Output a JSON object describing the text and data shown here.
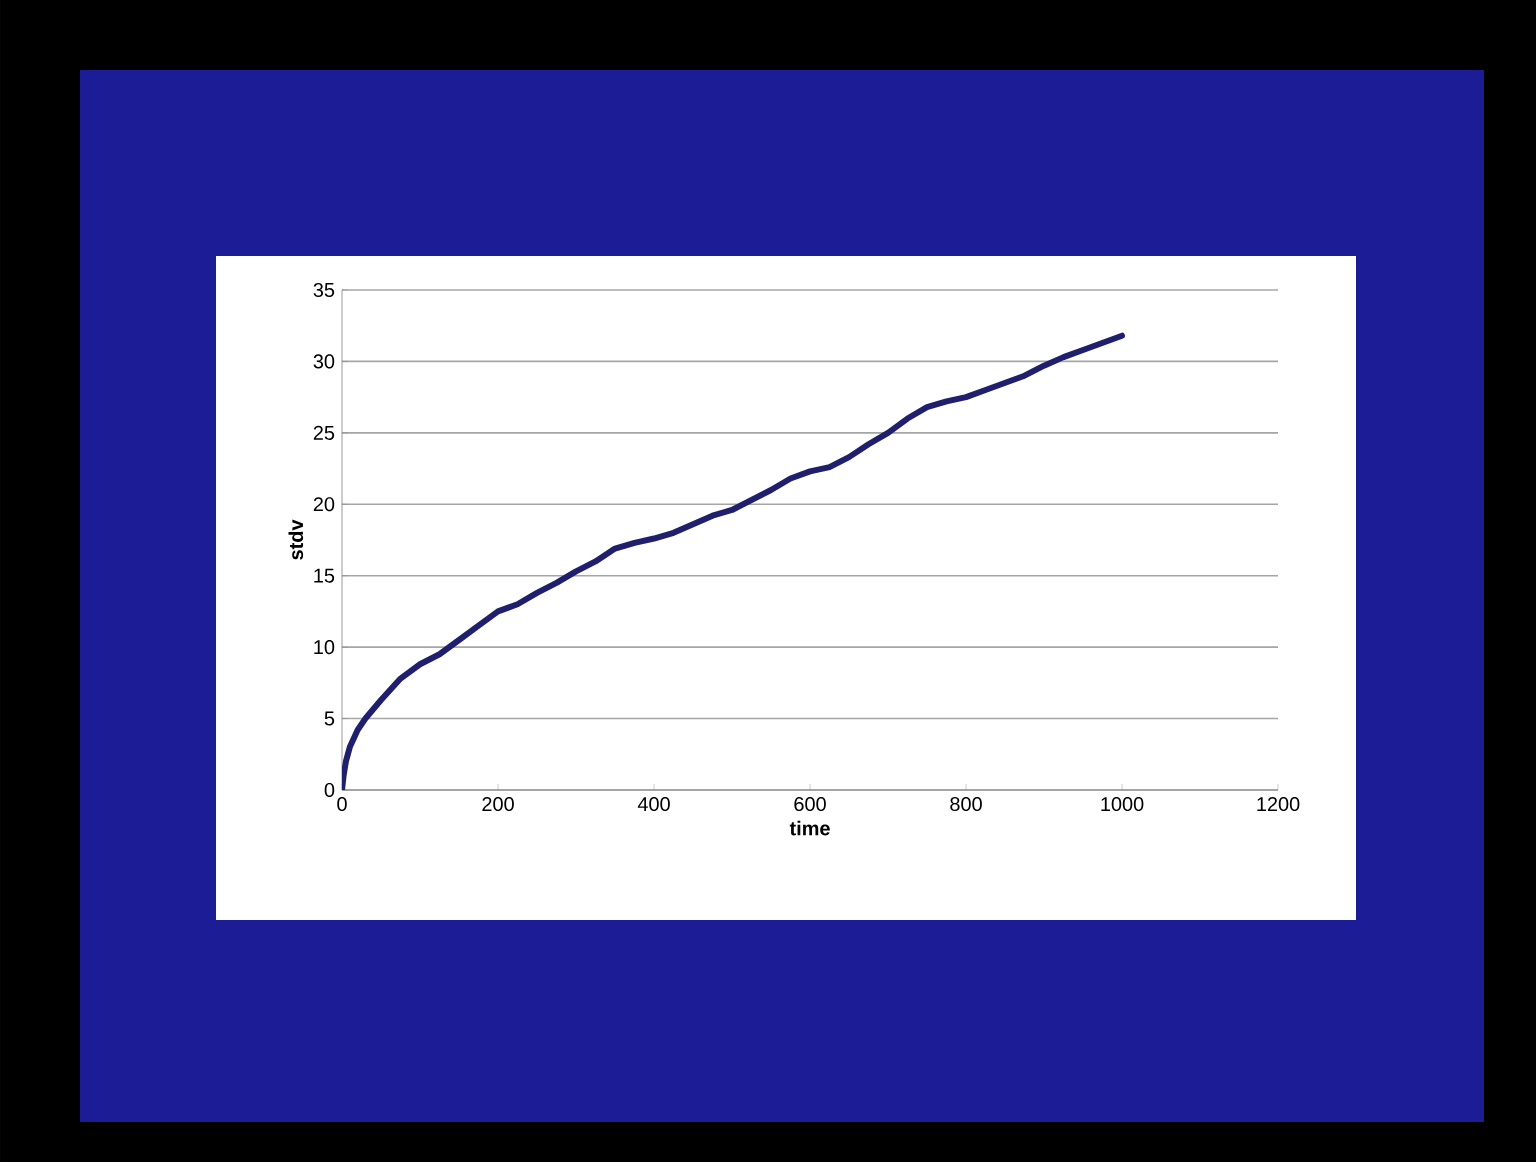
{
  "chart_data": {
    "type": "line",
    "xlabel": "time",
    "ylabel": "stdv",
    "xlim": [
      0,
      1200
    ],
    "xticks": [
      0,
      200,
      400,
      600,
      800,
      1000,
      1200
    ],
    "ylim": [
      0,
      35
    ],
    "yticks": [
      0,
      5,
      10,
      15,
      20,
      25,
      30,
      35
    ],
    "grid": "y",
    "marker": "none",
    "line_style": "solid",
    "series": [
      {
        "color": "#1f1f6e",
        "x": [
          0,
          2,
          5,
          10,
          20,
          30,
          50,
          75,
          100,
          125,
          150,
          175,
          200,
          225,
          250,
          275,
          300,
          325,
          350,
          375,
          400,
          425,
          450,
          475,
          500,
          525,
          550,
          575,
          600,
          625,
          650,
          675,
          700,
          725,
          750,
          775,
          800,
          825,
          850,
          875,
          900,
          925,
          950,
          975,
          1000
        ],
        "values": [
          0,
          1,
          2,
          3,
          4.2,
          5,
          6.3,
          7.8,
          8.8,
          9.5,
          10.5,
          11.5,
          12.5,
          13,
          13.8,
          14.5,
          15.3,
          16,
          16.9,
          17.3,
          17.6,
          18,
          18.6,
          19.2,
          19.6,
          20.3,
          21,
          21.8,
          22.3,
          22.6,
          23.3,
          24.2,
          25,
          26,
          26.8,
          27.2,
          27.5,
          28,
          28.5,
          29,
          29.7,
          30.3,
          30.8,
          31.3,
          31.8
        ]
      }
    ]
  }
}
